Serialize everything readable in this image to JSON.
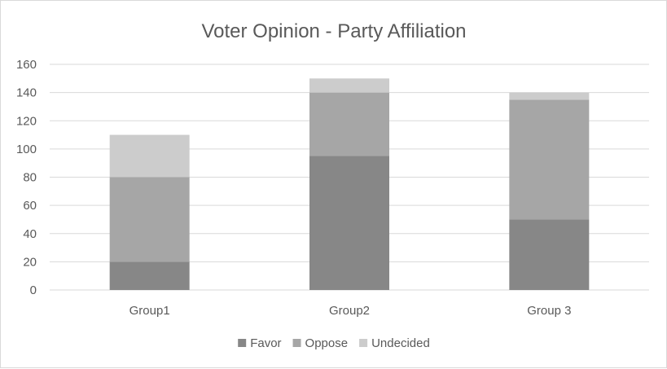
{
  "chart_data": {
    "type": "bar",
    "stacked": true,
    "title": "Voter Opinion - Party Affiliation",
    "xlabel": "",
    "ylabel": "",
    "categories": [
      "Group1",
      "Group2",
      "Group 3"
    ],
    "series": [
      {
        "name": "Favor",
        "values": [
          20,
          95,
          50
        ],
        "color": "#878787"
      },
      {
        "name": "Oppose",
        "values": [
          60,
          45,
          85
        ],
        "color": "#a6a6a6"
      },
      {
        "name": "Undecided",
        "values": [
          30,
          10,
          5
        ],
        "color": "#cccccc"
      }
    ],
    "ylim": [
      0,
      160
    ],
    "yticks": [
      0,
      20,
      40,
      60,
      80,
      100,
      120,
      140,
      160
    ],
    "grid": true,
    "legend_position": "bottom",
    "colors": {
      "grid": "#d9d9d9",
      "text": "#595959"
    }
  }
}
